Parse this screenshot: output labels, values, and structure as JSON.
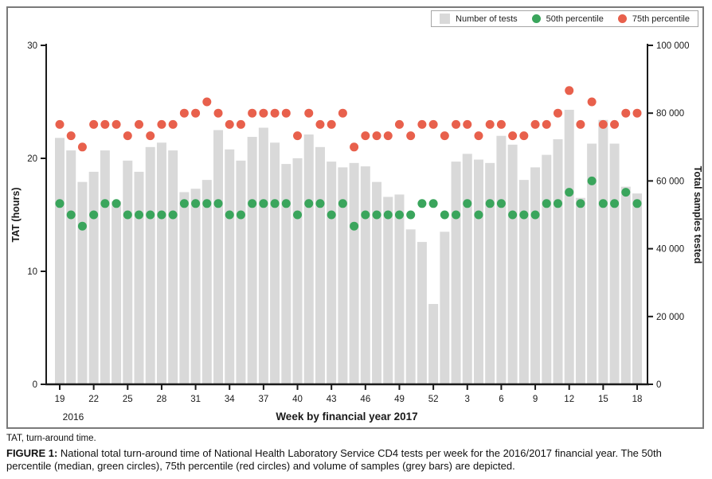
{
  "figure": {
    "footnote": "TAT, turn-around time.",
    "caption_label": "FIGURE 1:",
    "caption_text": " National total turn-around time of National Health Laboratory Service CD4 tests per week for the 2016/2017 financial year. The 50th percentile (median, green circles), 75th percentile (red circles) and volume of samples (grey bars) are depicted."
  },
  "legend": {
    "items": [
      {
        "label": "Number of tests",
        "type": "bar",
        "color": "#d9d9d9"
      },
      {
        "label": "50th percentile",
        "type": "dot",
        "color": "#3aa55c"
      },
      {
        "label": "75th percentile",
        "type": "dot",
        "color": "#e8604c"
      }
    ]
  },
  "chart_data": {
    "type": "bar",
    "title": "",
    "xlabel": "Week by financial year 2017",
    "x_period_label": "2016",
    "ylabel_left": "TAT (hours)",
    "ylabel_right": "Total samples tested",
    "ylim_left": [
      0,
      30
    ],
    "yticks_left": [
      0,
      10,
      20,
      30
    ],
    "ylim_right": [
      0,
      100000
    ],
    "yticks_right": [
      "0",
      "20 000",
      "40 000",
      "60 000",
      "80 000",
      "100 000"
    ],
    "grid": false,
    "legend_position": "top-right",
    "weeks": [
      "19",
      "20",
      "21",
      "22",
      "23",
      "24",
      "25",
      "26",
      "27",
      "28",
      "29",
      "30",
      "31",
      "32",
      "33",
      "34",
      "35",
      "36",
      "37",
      "38",
      "39",
      "40",
      "41",
      "42",
      "43",
      "44",
      "45",
      "46",
      "47",
      "48",
      "49",
      "50",
      "51",
      "52",
      "1",
      "2",
      "3",
      "4",
      "5",
      "6",
      "7",
      "8",
      "9",
      "10",
      "11",
      "12",
      "13",
      "14",
      "15",
      "16",
      "17",
      "18"
    ],
    "xtick_every": 3,
    "series": [
      {
        "name": "Number of tests",
        "type": "bar",
        "axis": "right",
        "color": "#d9d9d9",
        "values": [
          72700,
          69000,
          59700,
          62700,
          69000,
          54000,
          66000,
          62700,
          70000,
          71300,
          69000,
          56700,
          57700,
          60300,
          75000,
          69300,
          66000,
          73000,
          75700,
          71300,
          65000,
          66700,
          73700,
          70000,
          65700,
          64000,
          65300,
          64300,
          59700,
          55300,
          56000,
          45700,
          42000,
          23700,
          45000,
          65700,
          68000,
          66300,
          65300,
          73300,
          70700,
          60300,
          64000,
          67700,
          72300,
          81000,
          55000,
          71000,
          78000,
          71000,
          58300,
          56300
        ]
      },
      {
        "name": "50th percentile",
        "type": "scatter",
        "axis": "left",
        "color": "#3aa55c",
        "values": [
          16,
          15,
          14,
          15,
          16,
          16,
          15,
          15,
          15,
          15,
          15,
          16,
          16,
          16,
          16,
          15,
          15,
          16,
          16,
          16,
          16,
          15,
          16,
          16,
          15,
          16,
          14,
          15,
          15,
          15,
          15,
          15,
          16,
          16,
          15,
          15,
          16,
          15,
          16,
          16,
          15,
          15,
          15,
          16,
          16,
          17,
          16,
          18,
          16,
          16,
          17,
          16
        ]
      },
      {
        "name": "75th percentile",
        "type": "scatter",
        "axis": "left",
        "color": "#e8604c",
        "values": [
          23,
          22,
          21,
          23,
          23,
          23,
          22,
          23,
          22,
          23,
          23,
          24,
          24,
          25,
          24,
          23,
          23,
          24,
          24,
          24,
          24,
          22,
          24,
          23,
          23,
          24,
          21,
          22,
          22,
          22,
          23,
          22,
          23,
          23,
          22,
          23,
          23,
          22,
          23,
          23,
          22,
          22,
          23,
          23,
          24,
          26,
          23,
          25,
          23,
          23,
          24,
          24
        ]
      }
    ]
  }
}
